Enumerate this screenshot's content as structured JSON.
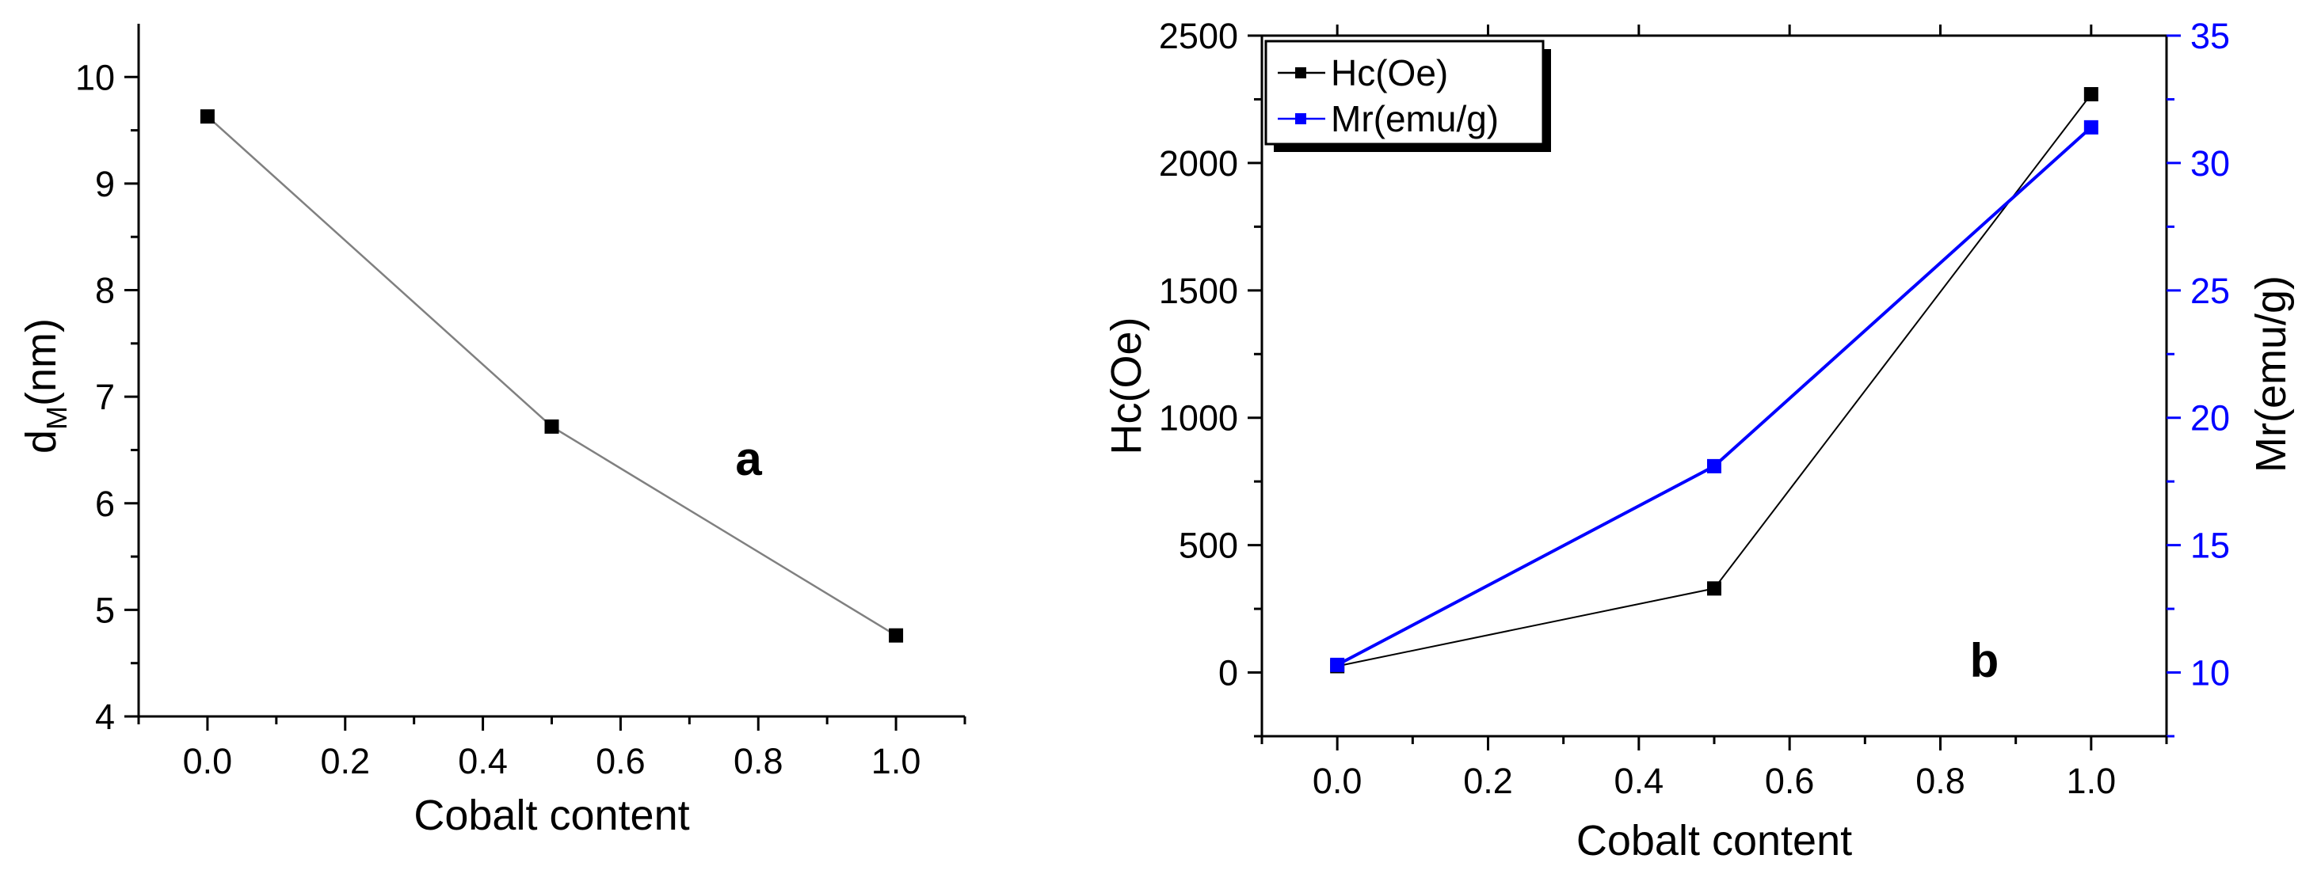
{
  "chart_data": [
    {
      "type": "line",
      "panel_label": "a",
      "xlabel": "Cobalt content",
      "ylabel_main": "d",
      "ylabel_sub": "M",
      "ylabel_unit": "(nm)",
      "xlim": [
        -0.1,
        1.1
      ],
      "ylim": [
        4,
        10.5
      ],
      "xticks": [
        0.0,
        0.2,
        0.4,
        0.6,
        0.8,
        1.0
      ],
      "xtick_labels": [
        "0.0",
        "0.2",
        "0.4",
        "0.6",
        "0.8",
        "1.0"
      ],
      "yticks": [
        4,
        5,
        6,
        7,
        8,
        9,
        10
      ],
      "ytick_labels": [
        "4",
        "5",
        "6",
        "7",
        "8",
        "9",
        "10"
      ],
      "series": [
        {
          "name": "dM",
          "color": "#808080",
          "marker_color": "#000000",
          "x": [
            0.0,
            0.5,
            1.0
          ],
          "values": [
            9.63,
            6.72,
            4.76
          ]
        }
      ]
    },
    {
      "type": "line",
      "panel_label": "b",
      "xlabel": "Cobalt content",
      "ylabel_left": "Hc(Oe)",
      "ylabel_right": "Mr(emu/g)",
      "xlim": [
        -0.1,
        1.1
      ],
      "ylim_left": [
        -250,
        2500
      ],
      "ylim_right": [
        7.5,
        35
      ],
      "xticks": [
        0.0,
        0.2,
        0.4,
        0.6,
        0.8,
        1.0
      ],
      "xtick_labels": [
        "0.0",
        "0.2",
        "0.4",
        "0.6",
        "0.8",
        "1.0"
      ],
      "yticks_left": [
        0,
        500,
        1000,
        1500,
        2000,
        2500
      ],
      "ytick_labels_left": [
        "0",
        "500",
        "1000",
        "1500",
        "2000",
        "2500"
      ],
      "yticks_right": [
        10,
        15,
        20,
        25,
        30,
        35
      ],
      "ytick_labels_right": [
        "10",
        "15",
        "20",
        "25",
        "30",
        "35"
      ],
      "right_axis_color": "#0000ff",
      "legend_position": "top-left",
      "legend": [
        "Hc(Oe)",
        "Mr(emu/g)"
      ],
      "series": [
        {
          "name": "Hc(Oe)",
          "axis": "left",
          "color": "#000000",
          "x": [
            0.0,
            0.5,
            1.0
          ],
          "values": [
            25,
            330,
            2270
          ]
        },
        {
          "name": "Mr(emu/g)",
          "axis": "right",
          "color": "#0000ff",
          "x": [
            0.0,
            0.5,
            1.0
          ],
          "values": [
            10.3,
            18.1,
            31.4
          ]
        }
      ]
    }
  ]
}
